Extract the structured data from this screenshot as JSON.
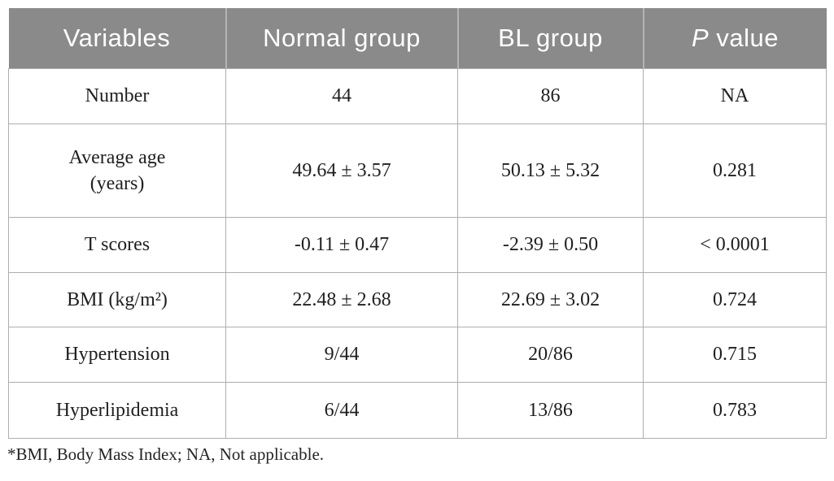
{
  "table": {
    "header": {
      "variables": "Variables",
      "normal_group": "Normal group",
      "bl_group": "BL group",
      "p_value_italic": "P",
      "p_value_rest": " value"
    },
    "rows": [
      {
        "variable": "Number",
        "normal": "44",
        "bl": "86",
        "p": "NA"
      },
      {
        "variable": "Average age\n(years)",
        "normal": "49.64 ± 3.57",
        "bl": "50.13 ± 5.32",
        "p": "0.281"
      },
      {
        "variable": "T scores",
        "normal": "-0.11 ± 0.47",
        "bl": "-2.39 ± 0.50",
        "p": "< 0.0001"
      },
      {
        "variable": "BMI (kg/m²)",
        "normal": "22.48 ± 2.68",
        "bl": "22.69 ± 3.02",
        "p": "0.724"
      },
      {
        "variable": "Hypertension",
        "normal": "9/44",
        "bl": "20/86",
        "p": "0.715"
      },
      {
        "variable": "Hyperlipidemia",
        "normal": "6/44",
        "bl": "13/86",
        "p": "0.783"
      }
    ],
    "footnote": "*BMI, Body Mass Index; NA, Not applicable.",
    "colors": {
      "header_bg": "#8a8a8a",
      "header_text": "#ffffff",
      "header_separator": "#b4b4b4",
      "grid_line": "#aeaeae",
      "body_text": "#1f1f1f"
    }
  }
}
